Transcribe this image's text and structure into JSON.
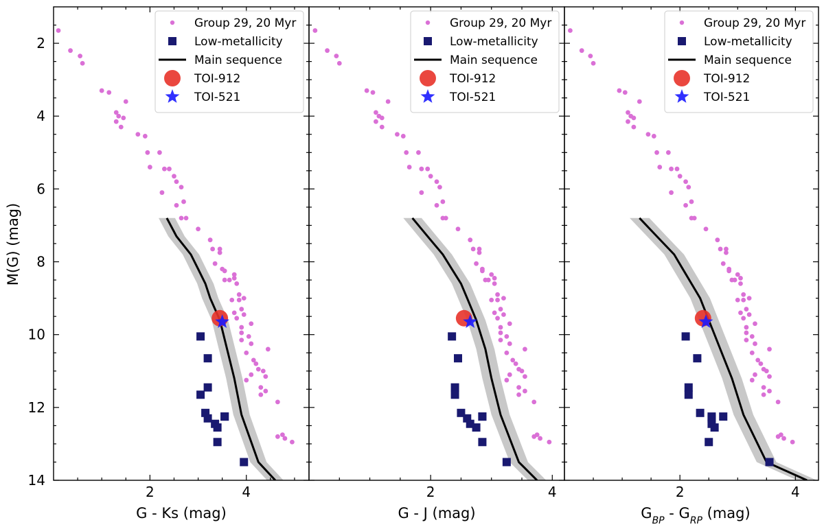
{
  "chart_data": {
    "type": "scatter",
    "ylabel": "M(G) (mag)",
    "ylim": [
      14,
      1
    ],
    "yticks": [
      "2",
      "4",
      "6",
      "8",
      "10",
      "12",
      "14"
    ],
    "legend": {
      "placement": "top-right",
      "entries": [
        "Group 29, 20 Myr",
        "Low-metallicity",
        "Main sequence",
        "TOI-912",
        "TOI-521"
      ]
    },
    "colors": {
      "group": "#da70d6",
      "lowmet": "#191970",
      "mainseq": "#000000",
      "band": "#c8c8c8",
      "toi912": "#e8332a",
      "toi521": "#1a1aff"
    },
    "group_mag": [
      1.65,
      2.2,
      2.35,
      2.55,
      3.3,
      3.35,
      3.6,
      3.9,
      4.0,
      4.05,
      4.15,
      4.3,
      4.5,
      4.55,
      5.0,
      5.0,
      5.4,
      5.45,
      5.45,
      5.65,
      5.8,
      5.95,
      6.1,
      6.35,
      6.45,
      6.8,
      6.8,
      7.1,
      7.4,
      7.65,
      7.65,
      7.75,
      8.05,
      8.2,
      8.25,
      8.35,
      8.45,
      8.5,
      8.5,
      8.6,
      8.9,
      9.0,
      9.05,
      9.05,
      9.3,
      9.4,
      9.45,
      9.55,
      9.7,
      9.8,
      9.95,
      10.05,
      10.15,
      10.25,
      10.4,
      10.5,
      10.7,
      10.8,
      10.95,
      11.0,
      11.1,
      11.15,
      11.25,
      11.45,
      11.55,
      11.65,
      11.85,
      12.75,
      12.85,
      12.8,
      12.95
    ],
    "lowmet_mag": [
      10.05,
      10.65,
      11.45,
      11.65,
      12.15,
      12.25,
      12.3,
      12.45,
      12.55,
      12.25,
      12.95,
      13.5
    ],
    "ms_mag": [
      6.8,
      7.3,
      7.8,
      8.2,
      8.6,
      9.0,
      9.6,
      10.4,
      11.2,
      12.2,
      13.5,
      14.0
    ],
    "panels": [
      {
        "xlabel": "G - Ks (mag)",
        "xlim": [
          0.0,
          5.3
        ],
        "xticks": [
          "2",
          "4"
        ],
        "group_color": [
          0.1,
          0.35,
          0.55,
          0.6,
          1.0,
          1.15,
          1.5,
          1.3,
          1.35,
          1.45,
          1.3,
          1.4,
          1.75,
          1.9,
          1.95,
          2.2,
          2.0,
          2.3,
          2.4,
          2.5,
          2.55,
          2.65,
          2.25,
          2.7,
          2.55,
          2.75,
          2.65,
          3.0,
          3.25,
          3.3,
          3.45,
          3.45,
          3.35,
          3.5,
          3.55,
          3.75,
          3.75,
          3.55,
          3.65,
          3.8,
          3.85,
          3.95,
          3.85,
          3.7,
          3.9,
          3.75,
          3.95,
          3.8,
          4.1,
          3.9,
          3.9,
          4.05,
          3.9,
          4.1,
          4.45,
          4.0,
          4.15,
          4.2,
          4.25,
          4.35,
          4.1,
          4.4,
          4.0,
          4.3,
          4.4,
          4.3,
          4.65,
          4.75,
          4.8,
          4.65,
          4.95
        ],
        "lowmet_color": [
          3.05,
          3.2,
          3.2,
          3.05,
          3.15,
          3.55,
          3.2,
          3.35,
          3.4,
          3.55,
          3.4,
          3.95
        ],
        "ms_color": [
          2.35,
          2.55,
          2.85,
          3.0,
          3.15,
          3.25,
          3.45,
          3.6,
          3.75,
          3.9,
          4.25,
          4.6
        ],
        "band_half": 0.17,
        "toi912": [
          3.45,
          9.55
        ],
        "toi521": [
          3.5,
          9.65
        ]
      },
      {
        "xlabel": "G - J (mag)",
        "xlim": [
          0.0,
          4.2
        ],
        "xticks": [
          "2",
          "4"
        ],
        "group_color": [
          0.1,
          0.3,
          0.45,
          0.5,
          0.95,
          1.05,
          1.3,
          1.1,
          1.15,
          1.2,
          1.1,
          1.2,
          1.45,
          1.55,
          1.6,
          1.8,
          1.65,
          1.85,
          1.95,
          2.0,
          2.1,
          2.15,
          1.85,
          2.2,
          2.1,
          2.25,
          2.2,
          2.45,
          2.65,
          2.7,
          2.8,
          2.8,
          2.75,
          2.85,
          2.85,
          3.0,
          3.05,
          2.9,
          2.95,
          3.05,
          3.1,
          3.2,
          3.1,
          3.0,
          3.15,
          3.05,
          3.2,
          3.1,
          3.3,
          3.15,
          3.15,
          3.25,
          3.15,
          3.3,
          3.55,
          3.25,
          3.35,
          3.4,
          3.45,
          3.5,
          3.3,
          3.55,
          3.25,
          3.45,
          3.55,
          3.45,
          3.7,
          3.75,
          3.8,
          3.7,
          3.95
        ],
        "lowmet_color": [
          2.35,
          2.45,
          2.4,
          2.4,
          2.5,
          2.85,
          2.6,
          2.65,
          2.75,
          2.85,
          2.85,
          3.25
        ],
        "ms_color": [
          1.7,
          1.95,
          2.2,
          2.35,
          2.5,
          2.6,
          2.75,
          2.9,
          3.0,
          3.15,
          3.45,
          3.75
        ],
        "band_half": 0.15,
        "toi912": [
          2.55,
          9.55
        ],
        "toi521": [
          2.65,
          9.65
        ]
      },
      {
        "xlabel": "G_BP - G_RP (mag)",
        "xlim": [
          0.0,
          4.4
        ],
        "xticks": [
          "2",
          "4"
        ],
        "group_color": [
          0.1,
          0.3,
          0.45,
          0.5,
          0.95,
          1.05,
          1.3,
          1.1,
          1.15,
          1.2,
          1.1,
          1.2,
          1.45,
          1.55,
          1.6,
          1.8,
          1.65,
          1.85,
          1.95,
          2.0,
          2.1,
          2.15,
          1.85,
          2.2,
          2.1,
          2.25,
          2.2,
          2.45,
          2.65,
          2.7,
          2.8,
          2.8,
          2.75,
          2.85,
          2.85,
          3.0,
          3.05,
          2.9,
          2.95,
          3.05,
          3.1,
          3.2,
          3.1,
          3.0,
          3.15,
          3.05,
          3.2,
          3.1,
          3.3,
          3.15,
          3.15,
          3.25,
          3.15,
          3.3,
          3.55,
          3.25,
          3.35,
          3.4,
          3.45,
          3.5,
          3.3,
          3.55,
          3.25,
          3.45,
          3.55,
          3.45,
          3.7,
          3.75,
          3.8,
          3.7,
          3.95
        ],
        "lowmet_color": [
          2.1,
          2.3,
          2.15,
          2.15,
          2.35,
          2.75,
          2.55,
          2.55,
          2.6,
          2.55,
          2.5,
          3.55
        ],
        "ms_color": [
          1.3,
          1.6,
          1.9,
          2.05,
          2.2,
          2.35,
          2.5,
          2.7,
          2.9,
          3.1,
          3.5,
          4.2
        ],
        "band_half": 0.17,
        "toi912": [
          2.4,
          9.55
        ],
        "toi521": [
          2.45,
          9.65
        ]
      }
    ]
  }
}
